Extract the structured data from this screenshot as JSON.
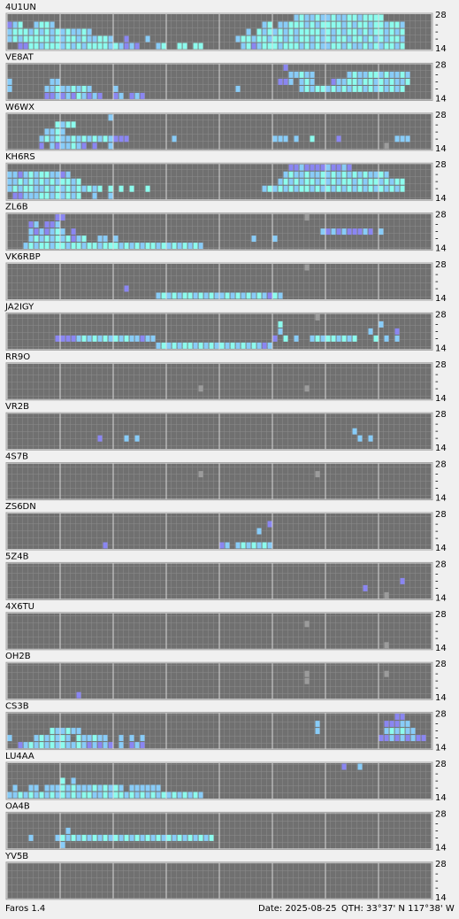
{
  "band_labels": [
    "28",
    "-",
    "-",
    "-",
    "14"
  ],
  "beacons": [
    {
      "name": "4U1UN",
      "rows": [
        "00000000000000000000000000000000000000000000000000000034334334334434444000",
        "234003443000000000000000000000000000000000000000340334443434444343443443443",
        "344434343434334300000000000000000000000000000304343434344443434344343443434",
        "343444443434434334430020003000000000000000034434434434344343434434434343443",
        "002244344434343444434323200034004404400000003423444344434343344343343434434"
      ]
    },
    {
      "name": "VE8AT",
      "rows": [
        "0000000000000000000000000000000000000000000000000000200000000000000000000",
        "0000000000000000000000000000000000000000000000000000033433000000343344343343",
        "3000000033000000000000000000000000000000000000000002230343000233443443434334",
        "3000000334334343000030000000000000000000000300000000000343443434344343434340",
        "0000000223232432320023023200000000000000000000000000000000000000000000000000"
      ]
    },
    {
      "name": "W6WX",
      "rows": [
        "0000000000000000000300000000000000000000000000000000000000000000000000",
        "0000000004344000000000000000000000000000000000000000000000000000000000",
        "0000000334300000000000000000000000000000000000000000000000000000000000",
        "0000003434334343434322200000000300000000000000000033303004000020000000000333",
        "0000002032334320200300000000000000000000000000000000000000000000000000010000"
      ]
    },
    {
      "name": "KH6RS",
      "rows": [
        "000000000000000000000000000000000000000000000000000002232222322320000000000",
        "332343443323000000000000000000000000000000000000000034334334343434343343000",
        "334343434344340000000000000000000000000000000000000343434434343443434434344",
        "343443343434343434040404004000000000000000000000343434344343434343434343434",
        "022333443434340030030000000000000000000000000000000000000000000000000000000"
      ]
    },
    {
      "name": "ZL6B",
      "rows": [
        "00000000022000000000000000000000000000000000000000000000100000000000000",
        "00002302230000000000000000000000000000000000000000000000000000000000",
        "00003232343020000000000000000000000000000000000000000000000323232223203",
        "0000343434342340033030000000000000000000000000300030000000000000000000",
        "0003434434434434434443434344343434343000000000000000000000000000000000"
      ]
    },
    {
      "name": "VK6RBP",
      "rows": [
        "00000000000000000000000000000000000000000000000000000000100000",
        "",
        "",
        "0000000000000000000000200000000000000000000000000000000000",
        "0000000000000000000000000000343434434343343434343243000000"
      ]
    },
    {
      "name": "JA2IGY",
      "rows": [
        "000000000000000000000000000000000000000000000000000000000010000000000000",
        "0000000000000000000000000000000000000000000000000004000000000000000000300",
        "000000000000000000000000000000000000000000000000000300000000000000003000020",
        "0000000002222343434343433233000000000000000000000020403003434434340004030300",
        "0000000000000000000000000000343434434343434343432300000000000000000000000000"
      ]
    },
    {
      "name": "RR9O",
      "rows": [
        "",
        "",
        "",
        "00000000000000000000000000000000000010000000000000000000100000",
        ""
      ]
    },
    {
      "name": "VR2B",
      "rows": [
        "",
        "",
        "000000000000000000000000000000000000000000000000000000000000000003",
        "000000000000000002000030300000000000000000000000000000000000000000303",
        ""
      ]
    },
    {
      "name": "4S7B",
      "rows": [
        "",
        "0000000000000000000000000000000000001000000000000000000000100000",
        "",
        "",
        ""
      ]
    },
    {
      "name": "ZS6DN",
      "rows": [
        "",
        "00000000000000000000000000000000000000000000000002000000000000000000000",
        "00000000000000000000000000000000000000000000000300000000000",
        "00000000000000000000000000000000000000000000000000000000000000000000000",
        "0000000000000000002000000000000000000000230343434300000000000000000000"
      ]
    },
    {
      "name": "5Z4B",
      "rows": [
        "",
        "",
        "000000000000000000000000000000000000000000000000000000000000000000000000002",
        "000000000000000000000000000000000000000000000000000000000000000000020000000",
        "000000000000000000000000000000000000000000000000000000000000000000000001"
      ]
    },
    {
      "name": "4X6TU",
      "rows": [
        "",
        "00000000000000000000000000000000000000000000000000000000100000",
        "",
        "",
        "0000000000000000000000000000000000000000000000000000000000000000000000010"
      ]
    },
    {
      "name": "OH2B",
      "rows": [
        "",
        "00000000000000000000000000000000000000000000000000000000100000000000000100",
        "00000000000000000000000000000000000000000000000000000000100000000000000000",
        "",
        "00000000000002000000000000000000000000000000000000000000000000000000000"
      ]
    },
    {
      "name": "CS3B",
      "rows": [
        "000000000000000000000000000000000000000000000000000000000000000000000000022",
        "0000000000000000000000000000000000000000000000000000000000300000000000022233",
        "00000000433433000000000000000000000000000000000000000000003000000000000343433",
        "3000034343430433433003030300000000000000000000000000000000000000000000223232322",
        "0023434343433432323203023200000000000000000000000000000000000000000000000000"
      ]
    },
    {
      "name": "LU4AA",
      "rows": [
        "0000000000000000000000000000000000000000000000000000000000000002003",
        "0000000000000000000000000000000000000000000000000000000000000000000000",
        "000000000040300000000000000000000000000000000000000000000000000000000000000",
        "030033033343433343434303333330000000000000000000000000000000000000000000",
        "334343434343434433434434343434343434300000000000000000000000000000000000"
      ]
    },
    {
      "name": "OA4B",
      "rows": [
        "",
        "",
        "000000000003000000000000000000000000000000000000000000000000000000000000",
        "0000300003434343434343434343434343434340000000000000000000000000000000000",
        "00000000003000000000000000000000000000000000000000000000000000000000000"
      ]
    },
    {
      "name": "YV5B",
      "rows": [
        "",
        "",
        "",
        "",
        ""
      ]
    }
  ],
  "footer": {
    "app": "Faros 1.4",
    "date": "Date: 2025-08-25",
    "qth": "QTH: 33°37' N  117°38' W"
  }
}
